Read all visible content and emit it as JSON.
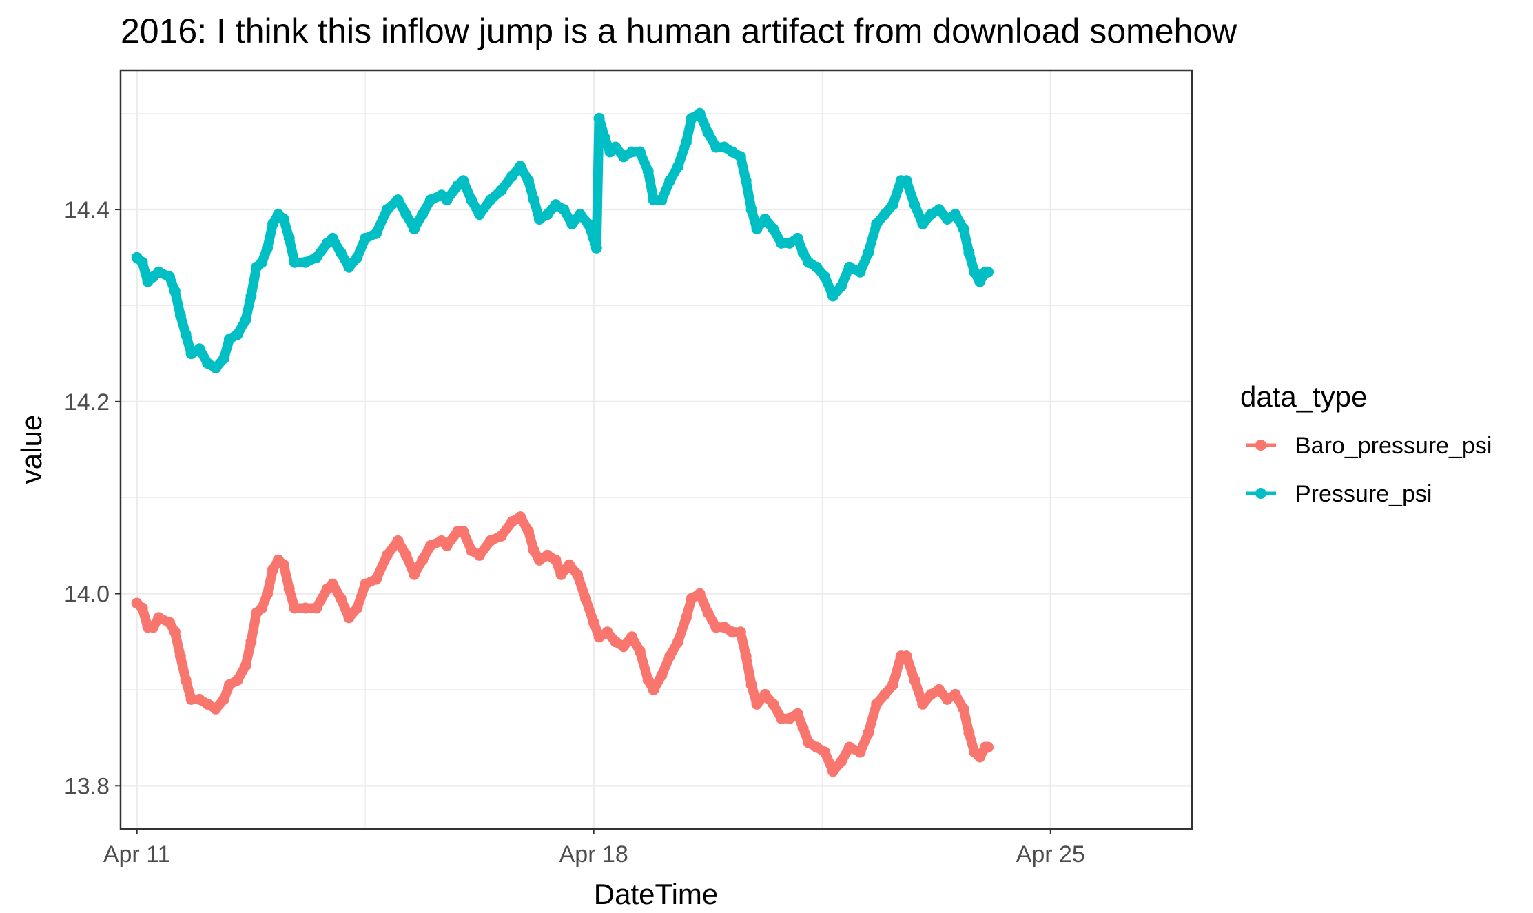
{
  "chart_data": {
    "type": "line",
    "title": "2016: I think this inflow jump is a human artifact from download somehow",
    "xlabel": "DateTime",
    "ylabel": "value",
    "x_ticks": [
      "Apr 11",
      "Apr 18",
      "Apr 25"
    ],
    "x_tick_dates": [
      "2016-04-11",
      "2016-04-18",
      "2016-04-25"
    ],
    "y_ticks": [
      "13.8",
      "14.0",
      "14.2",
      "14.4"
    ],
    "y_tick_values": [
      13.8,
      14.0,
      14.2,
      14.4
    ],
    "xlim": [
      "2016-04-10T18:00",
      "2016-04-27T04:00"
    ],
    "ylim": [
      13.755,
      14.545
    ],
    "grid": true,
    "legend_title": "data_type",
    "legend_position": "right",
    "colors": {
      "Baro_pressure_psi": "#F8766D",
      "Pressure_psi": "#00BFC4",
      "grid": "#ebebeb",
      "panel_border": "#333333",
      "axis_text": "#4d4d4d"
    },
    "series": [
      {
        "name": "Baro_pressure_psi",
        "points": [
          [
            "2016-04-11T00:00",
            13.99
          ],
          [
            "2016-04-11T02:00",
            13.985
          ],
          [
            "2016-04-11T04:00",
            13.965
          ],
          [
            "2016-04-11T06:00",
            13.965
          ],
          [
            "2016-04-11T08:00",
            13.975
          ],
          [
            "2016-04-11T12:00",
            13.97
          ],
          [
            "2016-04-11T14:00",
            13.96
          ],
          [
            "2016-04-11T16:00",
            13.935
          ],
          [
            "2016-04-11T18:00",
            13.91
          ],
          [
            "2016-04-11T20:00",
            13.89
          ],
          [
            "2016-04-11T23:00",
            13.89
          ],
          [
            "2016-04-12T02:00",
            13.885
          ],
          [
            "2016-04-12T05:00",
            13.88
          ],
          [
            "2016-04-12T08:00",
            13.89
          ],
          [
            "2016-04-12T10:00",
            13.905
          ],
          [
            "2016-04-12T13:00",
            13.91
          ],
          [
            "2016-04-12T16:00",
            13.925
          ],
          [
            "2016-04-12T18:00",
            13.95
          ],
          [
            "2016-04-12T20:00",
            13.98
          ],
          [
            "2016-04-12T22:00",
            13.985
          ],
          [
            "2016-04-13T00:00",
            14.0
          ],
          [
            "2016-04-13T02:00",
            14.025
          ],
          [
            "2016-04-13T04:00",
            14.035
          ],
          [
            "2016-04-13T06:00",
            14.03
          ],
          [
            "2016-04-13T08:00",
            14.005
          ],
          [
            "2016-04-13T10:00",
            13.985
          ],
          [
            "2016-04-13T14:00",
            13.985
          ],
          [
            "2016-04-13T18:00",
            13.985
          ],
          [
            "2016-04-13T22:00",
            14.005
          ],
          [
            "2016-04-14T00:00",
            14.01
          ],
          [
            "2016-04-14T03:00",
            13.995
          ],
          [
            "2016-04-14T06:00",
            13.975
          ],
          [
            "2016-04-14T09:00",
            13.985
          ],
          [
            "2016-04-14T12:00",
            14.01
          ],
          [
            "2016-04-14T16:00",
            14.015
          ],
          [
            "2016-04-14T20:00",
            14.04
          ],
          [
            "2016-04-15T00:00",
            14.055
          ],
          [
            "2016-04-15T03:00",
            14.04
          ],
          [
            "2016-04-15T06:00",
            14.02
          ],
          [
            "2016-04-15T09:00",
            14.035
          ],
          [
            "2016-04-15T12:00",
            14.05
          ],
          [
            "2016-04-15T16:00",
            14.055
          ],
          [
            "2016-04-15T18:00",
            14.05
          ],
          [
            "2016-04-15T22:00",
            14.065
          ],
          [
            "2016-04-16T00:00",
            14.065
          ],
          [
            "2016-04-16T03:00",
            14.045
          ],
          [
            "2016-04-16T06:00",
            14.04
          ],
          [
            "2016-04-16T10:00",
            14.055
          ],
          [
            "2016-04-16T14:00",
            14.06
          ],
          [
            "2016-04-16T18:00",
            14.075
          ],
          [
            "2016-04-16T21:00",
            14.08
          ],
          [
            "2016-04-17T00:00",
            14.065
          ],
          [
            "2016-04-17T02:00",
            14.045
          ],
          [
            "2016-04-17T04:00",
            14.035
          ],
          [
            "2016-04-17T07:00",
            14.04
          ],
          [
            "2016-04-17T10:00",
            14.035
          ],
          [
            "2016-04-17T12:00",
            14.02
          ],
          [
            "2016-04-17T15:00",
            14.03
          ],
          [
            "2016-04-17T18:00",
            14.02
          ],
          [
            "2016-04-17T21:00",
            13.995
          ],
          [
            "2016-04-18T00:00",
            13.97
          ],
          [
            "2016-04-18T02:00",
            13.955
          ],
          [
            "2016-04-18T05:00",
            13.96
          ],
          [
            "2016-04-18T08:00",
            13.95
          ],
          [
            "2016-04-18T11:00",
            13.945
          ],
          [
            "2016-04-18T14:00",
            13.955
          ],
          [
            "2016-04-18T17:00",
            13.94
          ],
          [
            "2016-04-18T20:00",
            13.91
          ],
          [
            "2016-04-18T22:00",
            13.9
          ],
          [
            "2016-04-19T01:00",
            13.915
          ],
          [
            "2016-04-19T04:00",
            13.935
          ],
          [
            "2016-04-19T07:00",
            13.95
          ],
          [
            "2016-04-19T10:00",
            13.975
          ],
          [
            "2016-04-19T12:00",
            13.995
          ],
          [
            "2016-04-19T15:00",
            14.0
          ],
          [
            "2016-04-19T18:00",
            13.98
          ],
          [
            "2016-04-19T21:00",
            13.965
          ],
          [
            "2016-04-20T00:00",
            13.965
          ],
          [
            "2016-04-20T03:00",
            13.96
          ],
          [
            "2016-04-20T06:00",
            13.96
          ],
          [
            "2016-04-20T08:00",
            13.935
          ],
          [
            "2016-04-20T10:00",
            13.905
          ],
          [
            "2016-04-20T12:00",
            13.885
          ],
          [
            "2016-04-20T15:00",
            13.895
          ],
          [
            "2016-04-20T18:00",
            13.885
          ],
          [
            "2016-04-20T21:00",
            13.87
          ],
          [
            "2016-04-21T00:00",
            13.87
          ],
          [
            "2016-04-21T03:00",
            13.875
          ],
          [
            "2016-04-21T05:00",
            13.86
          ],
          [
            "2016-04-21T07:00",
            13.845
          ],
          [
            "2016-04-21T10:00",
            13.84
          ],
          [
            "2016-04-21T13:00",
            13.835
          ],
          [
            "2016-04-21T16:00",
            13.815
          ],
          [
            "2016-04-21T19:00",
            13.825
          ],
          [
            "2016-04-21T22:00",
            13.84
          ],
          [
            "2016-04-22T02:00",
            13.835
          ],
          [
            "2016-04-22T05:00",
            13.855
          ],
          [
            "2016-04-22T08:00",
            13.885
          ],
          [
            "2016-04-22T11:00",
            13.895
          ],
          [
            "2016-04-22T14:00",
            13.905
          ],
          [
            "2016-04-22T17:00",
            13.935
          ],
          [
            "2016-04-22T19:00",
            13.935
          ],
          [
            "2016-04-22T22:00",
            13.91
          ],
          [
            "2016-04-23T01:00",
            13.885
          ],
          [
            "2016-04-23T04:00",
            13.895
          ],
          [
            "2016-04-23T07:00",
            13.9
          ],
          [
            "2016-04-23T10:00",
            13.89
          ],
          [
            "2016-04-23T13:00",
            13.895
          ],
          [
            "2016-04-23T16:00",
            13.88
          ],
          [
            "2016-04-23T18:00",
            13.855
          ],
          [
            "2016-04-23T20:00",
            13.835
          ],
          [
            "2016-04-23T22:00",
            13.83
          ],
          [
            "2016-04-24T00:00",
            13.84
          ],
          [
            "2016-04-24T01:00",
            13.84
          ]
        ]
      },
      {
        "name": "Pressure_psi",
        "points": [
          [
            "2016-04-11T00:00",
            14.35
          ],
          [
            "2016-04-11T02:00",
            14.345
          ],
          [
            "2016-04-11T04:00",
            14.325
          ],
          [
            "2016-04-11T06:00",
            14.33
          ],
          [
            "2016-04-11T08:00",
            14.335
          ],
          [
            "2016-04-11T12:00",
            14.33
          ],
          [
            "2016-04-11T14:00",
            14.315
          ],
          [
            "2016-04-11T16:00",
            14.29
          ],
          [
            "2016-04-11T18:00",
            14.27
          ],
          [
            "2016-04-11T20:00",
            14.25
          ],
          [
            "2016-04-11T23:00",
            14.255
          ],
          [
            "2016-04-12T02:00",
            14.24
          ],
          [
            "2016-04-12T05:00",
            14.235
          ],
          [
            "2016-04-12T08:00",
            14.245
          ],
          [
            "2016-04-12T10:00",
            14.265
          ],
          [
            "2016-04-12T13:00",
            14.27
          ],
          [
            "2016-04-12T16:00",
            14.285
          ],
          [
            "2016-04-12T18:00",
            14.31
          ],
          [
            "2016-04-12T20:00",
            14.34
          ],
          [
            "2016-04-12T22:00",
            14.345
          ],
          [
            "2016-04-13T00:00",
            14.36
          ],
          [
            "2016-04-13T02:00",
            14.385
          ],
          [
            "2016-04-13T04:00",
            14.395
          ],
          [
            "2016-04-13T06:00",
            14.39
          ],
          [
            "2016-04-13T08:00",
            14.37
          ],
          [
            "2016-04-13T10:00",
            14.345
          ],
          [
            "2016-04-13T14:00",
            14.345
          ],
          [
            "2016-04-13T18:00",
            14.35
          ],
          [
            "2016-04-13T22:00",
            14.365
          ],
          [
            "2016-04-14T00:00",
            14.37
          ],
          [
            "2016-04-14T03:00",
            14.355
          ],
          [
            "2016-04-14T06:00",
            14.34
          ],
          [
            "2016-04-14T09:00",
            14.35
          ],
          [
            "2016-04-14T12:00",
            14.37
          ],
          [
            "2016-04-14T16:00",
            14.375
          ],
          [
            "2016-04-14T20:00",
            14.4
          ],
          [
            "2016-04-15T00:00",
            14.41
          ],
          [
            "2016-04-15T03:00",
            14.395
          ],
          [
            "2016-04-15T06:00",
            14.38
          ],
          [
            "2016-04-15T09:00",
            14.395
          ],
          [
            "2016-04-15T12:00",
            14.41
          ],
          [
            "2016-04-15T16:00",
            14.415
          ],
          [
            "2016-04-15T18:00",
            14.41
          ],
          [
            "2016-04-15T22:00",
            14.425
          ],
          [
            "2016-04-16T00:00",
            14.43
          ],
          [
            "2016-04-16T03:00",
            14.41
          ],
          [
            "2016-04-16T06:00",
            14.395
          ],
          [
            "2016-04-16T10:00",
            14.41
          ],
          [
            "2016-04-16T14:00",
            14.42
          ],
          [
            "2016-04-16T18:00",
            14.435
          ],
          [
            "2016-04-16T21:00",
            14.445
          ],
          [
            "2016-04-17T00:00",
            14.43
          ],
          [
            "2016-04-17T02:00",
            14.41
          ],
          [
            "2016-04-17T04:00",
            14.39
          ],
          [
            "2016-04-17T07:00",
            14.395
          ],
          [
            "2016-04-17T10:00",
            14.405
          ],
          [
            "2016-04-17T13:00",
            14.4
          ],
          [
            "2016-04-17T16:00",
            14.385
          ],
          [
            "2016-04-17T19:00",
            14.395
          ],
          [
            "2016-04-17T22:00",
            14.385
          ],
          [
            "2016-04-18T00:00",
            14.37
          ],
          [
            "2016-04-18T01:00",
            14.36
          ],
          [
            "2016-04-18T02:00",
            14.495
          ],
          [
            "2016-04-18T04:00",
            14.475
          ],
          [
            "2016-04-18T06:00",
            14.46
          ],
          [
            "2016-04-18T08:00",
            14.465
          ],
          [
            "2016-04-18T11:00",
            14.455
          ],
          [
            "2016-04-18T14:00",
            14.46
          ],
          [
            "2016-04-18T17:00",
            14.46
          ],
          [
            "2016-04-18T20:00",
            14.44
          ],
          [
            "2016-04-18T22:00",
            14.41
          ],
          [
            "2016-04-19T01:00",
            14.41
          ],
          [
            "2016-04-19T04:00",
            14.43
          ],
          [
            "2016-04-19T07:00",
            14.445
          ],
          [
            "2016-04-19T10:00",
            14.47
          ],
          [
            "2016-04-19T12:00",
            14.495
          ],
          [
            "2016-04-19T15:00",
            14.5
          ],
          [
            "2016-04-19T18:00",
            14.48
          ],
          [
            "2016-04-19T21:00",
            14.465
          ],
          [
            "2016-04-20T00:00",
            14.465
          ],
          [
            "2016-04-20T03:00",
            14.46
          ],
          [
            "2016-04-20T06:00",
            14.455
          ],
          [
            "2016-04-20T08:00",
            14.43
          ],
          [
            "2016-04-20T10:00",
            14.4
          ],
          [
            "2016-04-20T12:00",
            14.38
          ],
          [
            "2016-04-20T15:00",
            14.39
          ],
          [
            "2016-04-20T18:00",
            14.38
          ],
          [
            "2016-04-20T21:00",
            14.365
          ],
          [
            "2016-04-21T00:00",
            14.365
          ],
          [
            "2016-04-21T03:00",
            14.37
          ],
          [
            "2016-04-21T05:00",
            14.355
          ],
          [
            "2016-04-21T07:00",
            14.345
          ],
          [
            "2016-04-21T10:00",
            14.34
          ],
          [
            "2016-04-21T13:00",
            14.33
          ],
          [
            "2016-04-21T16:00",
            14.31
          ],
          [
            "2016-04-21T19:00",
            14.32
          ],
          [
            "2016-04-21T22:00",
            14.34
          ],
          [
            "2016-04-22T02:00",
            14.335
          ],
          [
            "2016-04-22T05:00",
            14.355
          ],
          [
            "2016-04-22T08:00",
            14.385
          ],
          [
            "2016-04-22T11:00",
            14.395
          ],
          [
            "2016-04-22T14:00",
            14.405
          ],
          [
            "2016-04-22T17:00",
            14.43
          ],
          [
            "2016-04-22T19:00",
            14.43
          ],
          [
            "2016-04-22T22:00",
            14.405
          ],
          [
            "2016-04-23T01:00",
            14.385
          ],
          [
            "2016-04-23T04:00",
            14.395
          ],
          [
            "2016-04-23T07:00",
            14.4
          ],
          [
            "2016-04-23T10:00",
            14.39
          ],
          [
            "2016-04-23T13:00",
            14.395
          ],
          [
            "2016-04-23T16:00",
            14.38
          ],
          [
            "2016-04-23T18:00",
            14.355
          ],
          [
            "2016-04-23T20:00",
            14.335
          ],
          [
            "2016-04-23T22:00",
            14.325
          ],
          [
            "2016-04-24T00:00",
            14.335
          ],
          [
            "2016-04-24T01:00",
            14.335
          ]
        ]
      }
    ]
  }
}
